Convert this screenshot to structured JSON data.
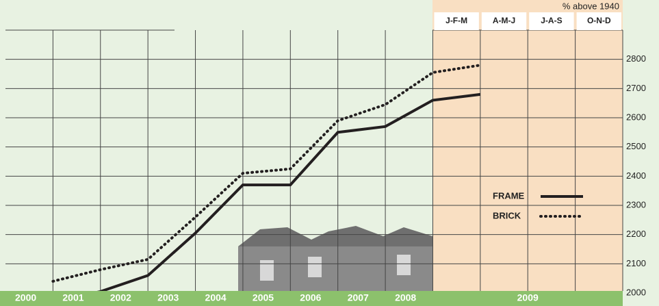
{
  "chart_data": {
    "type": "line",
    "y_label": "% above 1940",
    "categories": [
      "2000",
      "2001",
      "2002",
      "2003",
      "2004",
      "2005",
      "2006",
      "2007",
      "2008",
      "J-F-M",
      "A-M-J",
      "J-A-S",
      "O-N-D"
    ],
    "group_label": "2009",
    "series": [
      {
        "name": "FRAME",
        "color": "#231f20",
        "style": "solid",
        "values": [
          1970,
          2005,
          2060,
          2205,
          2370,
          2370,
          2550,
          2570,
          2660,
          2680,
          null,
          null,
          null
        ]
      },
      {
        "name": "BRICK",
        "color": "#231f20",
        "style": "dotted",
        "values": [
          2040,
          2080,
          2115,
          2260,
          2410,
          2425,
          2590,
          2645,
          2755,
          2780,
          null,
          null,
          null
        ]
      }
    ],
    "ylim": [
      2000,
      2900
    ],
    "yticks": [
      2000,
      2100,
      2200,
      2300,
      2400,
      2500,
      2600,
      2700,
      2800
    ],
    "grid": true,
    "legend": "right"
  }
}
